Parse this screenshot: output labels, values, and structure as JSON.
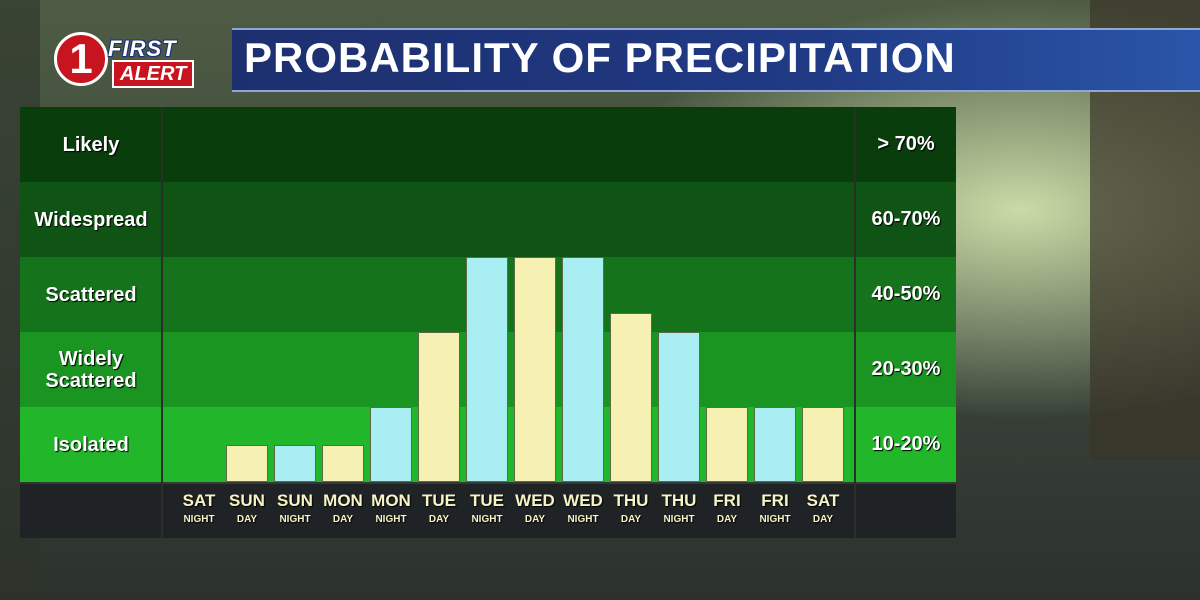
{
  "header": {
    "logo_number": "1",
    "logo_line1": "FIRST",
    "logo_line2": "ALERT",
    "title": "PROBABILITY OF PRECIPITATION"
  },
  "colors": {
    "day_bar": "#f6f1b2",
    "night_bar": "#a9eef2",
    "band_colors": [
      "#0a3d0c",
      "#0f5414",
      "#15741b",
      "#1b9522",
      "#22b62a"
    ]
  },
  "chart_data": {
    "type": "bar",
    "title": "PROBABILITY OF PRECIPITATION",
    "categories": [
      {
        "day": "SAT",
        "period": "NIGHT"
      },
      {
        "day": "SUN",
        "period": "DAY"
      },
      {
        "day": "SUN",
        "period": "NIGHT"
      },
      {
        "day": "MON",
        "period": "DAY"
      },
      {
        "day": "MON",
        "period": "NIGHT"
      },
      {
        "day": "TUE",
        "period": "DAY"
      },
      {
        "day": "TUE",
        "period": "NIGHT"
      },
      {
        "day": "WED",
        "period": "DAY"
      },
      {
        "day": "WED",
        "period": "NIGHT"
      },
      {
        "day": "THU",
        "period": "DAY"
      },
      {
        "day": "THU",
        "period": "NIGHT"
      },
      {
        "day": "FRI",
        "period": "DAY"
      },
      {
        "day": "FRI",
        "period": "NIGHT"
      },
      {
        "day": "SAT",
        "period": "DAY"
      }
    ],
    "levels": [
      0,
      0.5,
      0.5,
      0.5,
      1,
      2,
      3,
      3,
      3,
      2.25,
      2,
      1,
      1,
      1
    ],
    "bands": [
      {
        "label": "Isolated",
        "range": "10-20%"
      },
      {
        "label": "Widely Scattered",
        "range": "20-30%"
      },
      {
        "label": "Scattered",
        "range": "40-50%"
      },
      {
        "label": "Widespread",
        "range": "60-70%"
      },
      {
        "label": "Likely",
        "range": "> 70%"
      }
    ],
    "ylim": [
      0,
      5
    ],
    "grid": false,
    "legend": "none"
  }
}
